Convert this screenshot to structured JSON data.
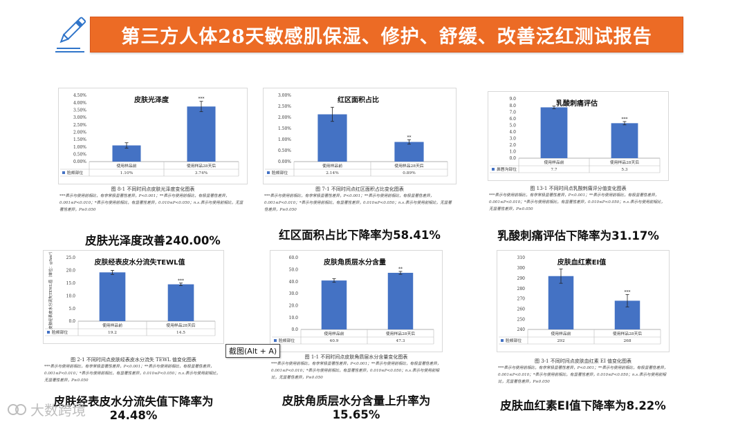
{
  "header": {
    "title": "第三方人体28天敏感肌保湿、修护、舒缓、改善泛红测试报告"
  },
  "tooltip": {
    "text": "截图(Alt + A)"
  },
  "watermark": {
    "text": "大数跨境"
  },
  "note_text": "***表示与使用前相比，有非常极显著性差异，P<0.001；**表示与使用前相比，有极显著性差异，0.001≤P<0.010；*表示与使用前相比，有显著性差异，0.010≤P<0.050；n.s.表示与使用前相比，无显著性差异，P≥0.050",
  "chart_data": [
    {
      "type": "bar",
      "title": "皮肤光泽度",
      "categories": [
        "使用样品前",
        "使用样品28天后"
      ],
      "values": [
        1.1,
        3.74
      ],
      "errors": [
        0.18,
        0.35
      ],
      "sig": [
        "",
        "***"
      ],
      "ylim": [
        0,
        4.5
      ],
      "yticks": [
        0,
        0.5,
        1.0,
        1.5,
        2.0,
        2.5,
        3.0,
        3.5,
        4.0,
        4.5
      ],
      "tick_fmt": "pct2",
      "table": {
        "series": "脸颊部位",
        "cells": [
          "1.10%",
          "3.74%"
        ]
      },
      "ylabel": "",
      "caption": "图 8-1    不同时间点皮肤光泽度变化图表",
      "result": "皮肤光泽度改善240.00%"
    },
    {
      "type": "bar",
      "title": "红区面积占比",
      "categories": [
        "使用样品前",
        "使用样品28天后"
      ],
      "values": [
        2.14,
        0.89
      ],
      "errors": [
        0.32,
        0.1
      ],
      "sig": [
        "",
        "**"
      ],
      "ylim": [
        0,
        3.0
      ],
      "yticks": [
        0,
        0.5,
        1.0,
        1.5,
        2.0,
        2.5,
        3.0
      ],
      "tick_fmt": "pct2",
      "table": {
        "series": "脸颊部位",
        "cells": [
          "2.14%",
          "0.89%"
        ]
      },
      "ylabel": "",
      "caption": "图 7-1    不同时间点红区面积占比变化图表",
      "result": "红区面积占比下降率为58.41%"
    },
    {
      "type": "bar",
      "title": "乳酸刺痛评估",
      "categories": [
        "使用样品前",
        "使用样品28天后"
      ],
      "values": [
        7.7,
        5.3
      ],
      "errors": [
        0.2,
        0.25
      ],
      "sig": [
        "",
        "***"
      ],
      "ylim": [
        0,
        9.0
      ],
      "yticks": [
        0,
        1.0,
        2.0,
        3.0,
        4.0,
        5.0,
        6.0,
        7.0,
        8.0,
        9.0
      ],
      "tick_fmt": "f1",
      "table": {
        "series": "鼻唇沟部位",
        "cells": [
          "7.7",
          "5.3"
        ]
      },
      "ylabel": "",
      "caption": "图 13-1    不同时间点乳酸刺痛评分值变化图表",
      "result": "乳酸刺痛评估下降率为31.17%"
    },
    {
      "type": "bar",
      "title": "皮肤经表皮水分流失TEWL值",
      "categories": [
        "使用样品前",
        "使用样品28天后"
      ],
      "values": [
        19.2,
        14.5
      ],
      "errors": [
        0.8,
        0.5
      ],
      "sig": [
        "",
        "***"
      ],
      "ylim": [
        0,
        25.0
      ],
      "yticks": [
        0,
        5.0,
        10.0,
        15.0,
        20.0,
        25.0
      ],
      "tick_fmt": "f1",
      "table": {
        "series": "脸颊部位",
        "cells": [
          "19.2",
          "14.5"
        ]
      },
      "ylabel": "皮肤经表皮水分流失TEWL值（单位：g/hm²）",
      "caption": "图 2-1    不同时间点皮肤经表皮水分流失 TEWL 值变化图表",
      "result": "皮肤经表皮水分流失值下降率为24.48%"
    },
    {
      "type": "bar",
      "title": "皮肤角质层水分含量",
      "categories": [
        "使用样品前",
        "使用样品28天后"
      ],
      "values": [
        40.9,
        47.3
      ],
      "errors": [
        1.5,
        1.2
      ],
      "sig": [
        "",
        "**"
      ],
      "ylim": [
        0,
        60.0
      ],
      "yticks": [
        0,
        10.0,
        20.0,
        30.0,
        40.0,
        50.0,
        60.0
      ],
      "tick_fmt": "f1",
      "table": {
        "series": "脸颊部位",
        "cells": [
          "40.9",
          "47.3"
        ]
      },
      "ylabel": "",
      "caption": "图 1-1    不同时间点皮肤角质层水分含量变化图表",
      "result": "皮肤角质层水分含量上升率为15.65%"
    },
    {
      "type": "bar",
      "title": "皮肤血红素EI值",
      "categories": [
        "使用样品前",
        "使用样品28天后"
      ],
      "values": [
        292,
        268
      ],
      "errors": [
        7,
        6
      ],
      "sig": [
        "",
        "***"
      ],
      "ylim": [
        240,
        310
      ],
      "yticks": [
        240,
        250,
        260,
        270,
        280,
        290,
        300,
        310
      ],
      "tick_fmt": "int",
      "table": {
        "series": "脸颊部位",
        "cells": [
          "292",
          "268"
        ]
      },
      "ylabel": "",
      "caption": "图 3-1    不同时间点皮肤血红素 EI 值变化图表",
      "result": "皮肤血红素EI值下降率为8.22%"
    }
  ]
}
